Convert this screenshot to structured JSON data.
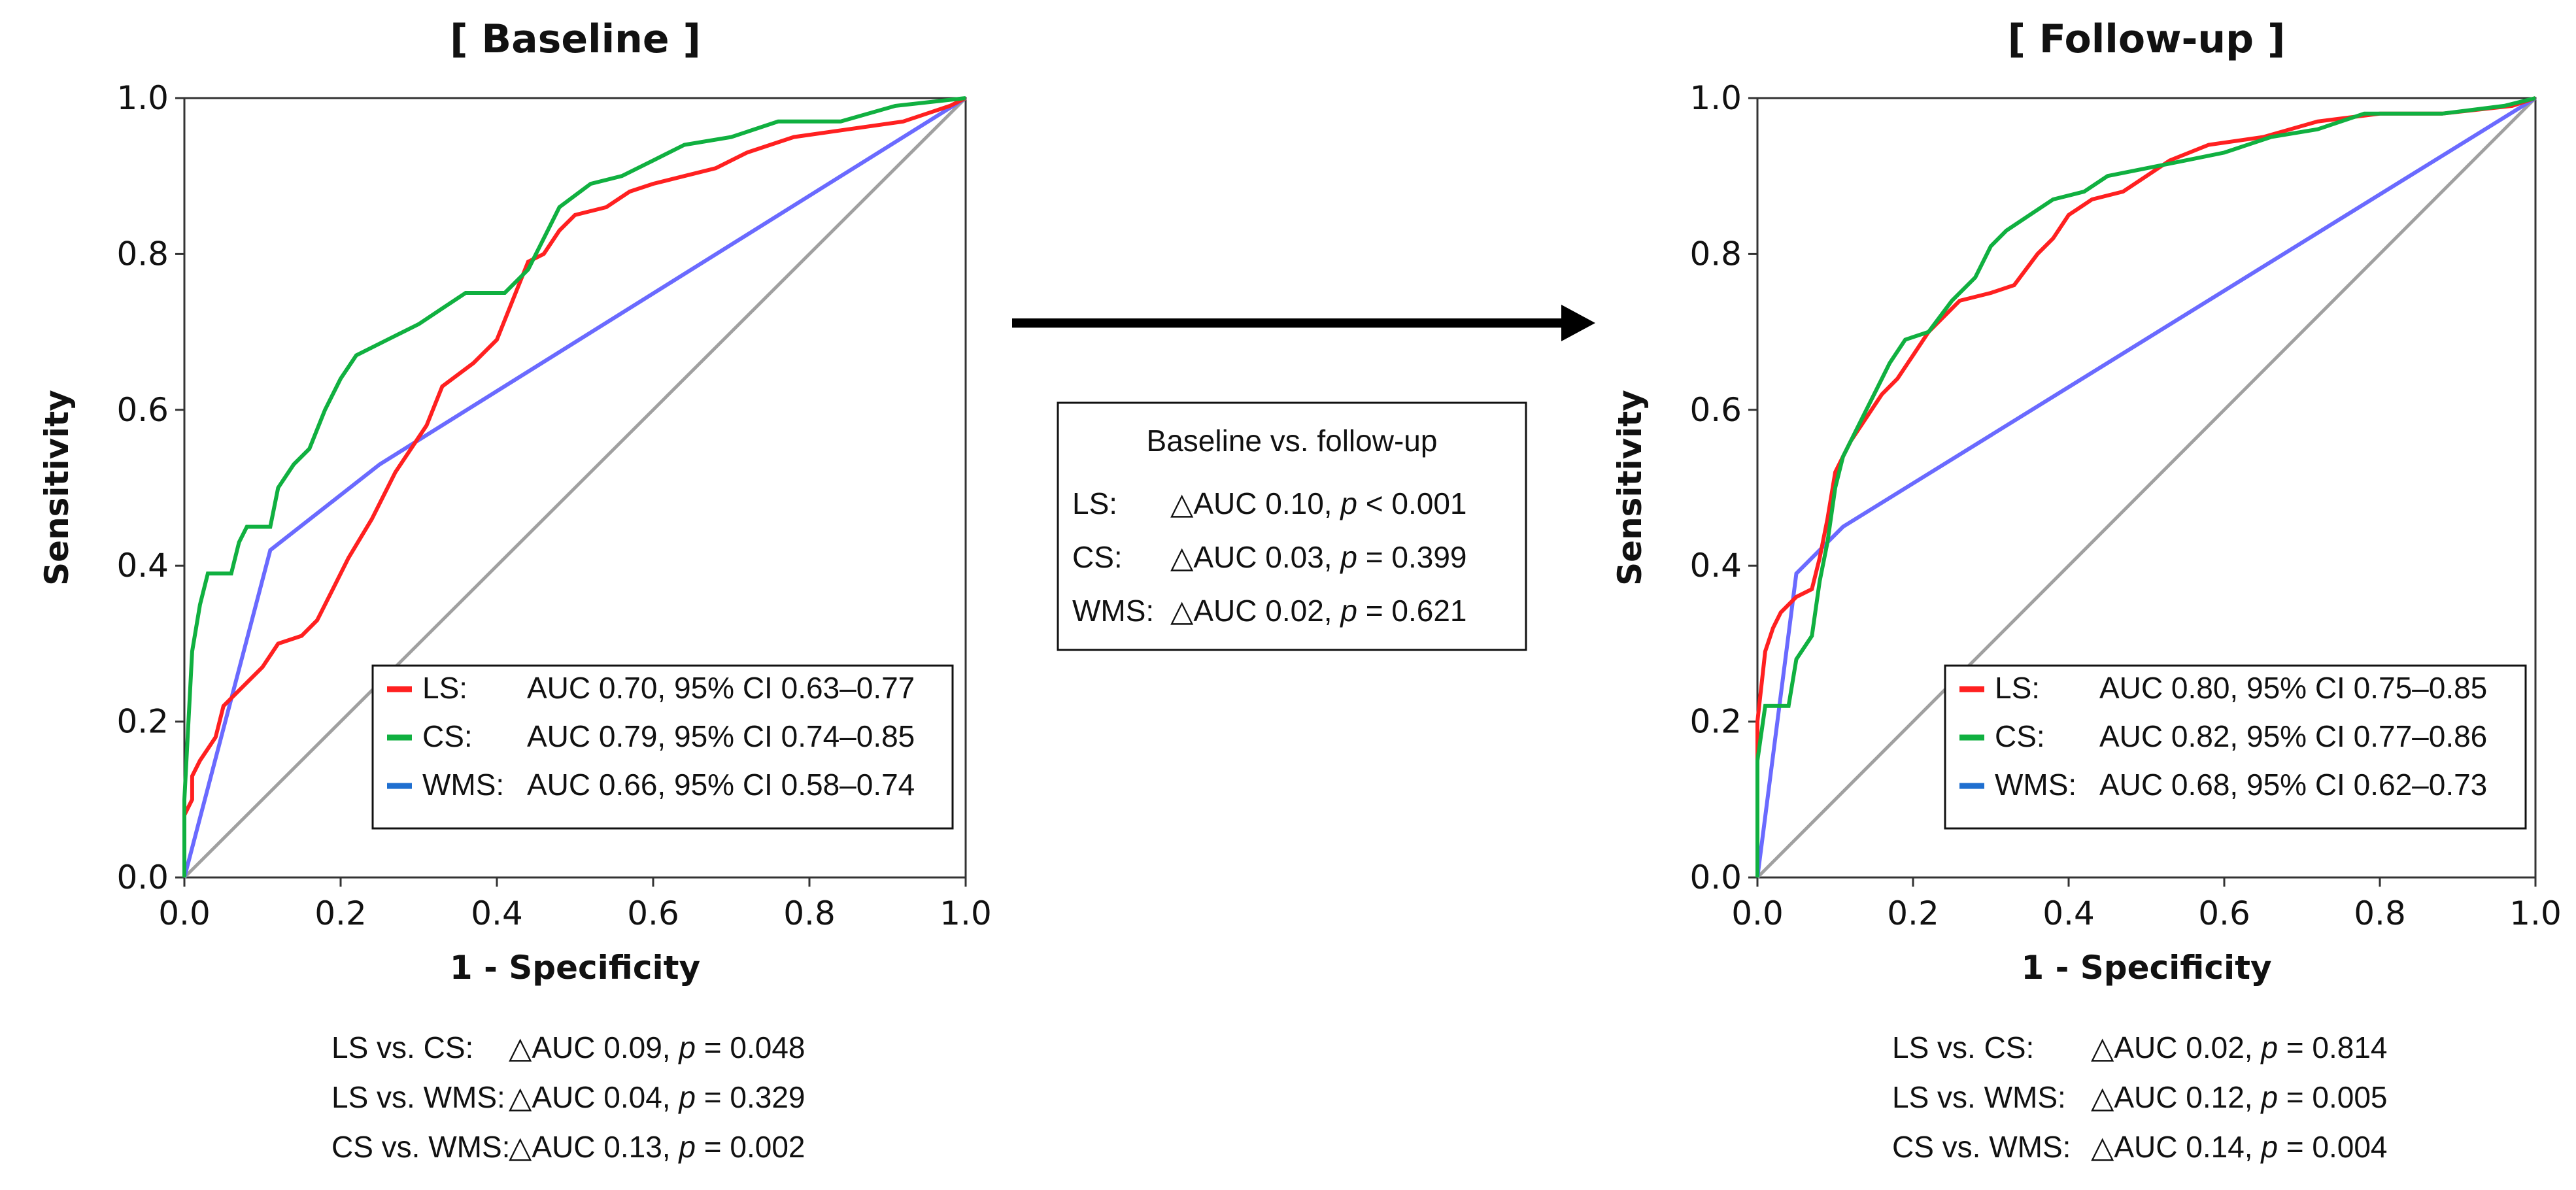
{
  "colors": {
    "LS": "#ff2020",
    "CS": "#10b040",
    "WMS": "#6a6aff",
    "WMS_legend": "#1f6fd0",
    "reference": "#a0a0a0",
    "axis": "#333333"
  },
  "chart_data": [
    {
      "type": "line",
      "title": "[ Baseline ]",
      "xlabel": "1 - Specificity",
      "ylabel": "Sensitivity",
      "xlim": [
        0,
        1
      ],
      "ylim": [
        0,
        1
      ],
      "xticks": [
        "0.0",
        "0.2",
        "0.4",
        "0.6",
        "0.8",
        "1.0"
      ],
      "yticks": [
        "0.0",
        "0.2",
        "0.4",
        "0.6",
        "0.8",
        "1.0"
      ],
      "series": [
        {
          "name": "LS",
          "color": "#ff2020",
          "points": [
            [
              0,
              0
            ],
            [
              0,
              0.08
            ],
            [
              0.01,
              0.1
            ],
            [
              0.01,
              0.13
            ],
            [
              0.02,
              0.15
            ],
            [
              0.04,
              0.18
            ],
            [
              0.05,
              0.22
            ],
            [
              0.08,
              0.25
            ],
            [
              0.1,
              0.27
            ],
            [
              0.12,
              0.3
            ],
            [
              0.15,
              0.31
            ],
            [
              0.17,
              0.33
            ],
            [
              0.19,
              0.37
            ],
            [
              0.21,
              0.41
            ],
            [
              0.24,
              0.46
            ],
            [
              0.27,
              0.52
            ],
            [
              0.31,
              0.58
            ],
            [
              0.33,
              0.63
            ],
            [
              0.37,
              0.66
            ],
            [
              0.4,
              0.69
            ],
            [
              0.42,
              0.74
            ],
            [
              0.44,
              0.79
            ],
            [
              0.46,
              0.8
            ],
            [
              0.48,
              0.83
            ],
            [
              0.5,
              0.85
            ],
            [
              0.54,
              0.86
            ],
            [
              0.57,
              0.88
            ],
            [
              0.6,
              0.89
            ],
            [
              0.64,
              0.9
            ],
            [
              0.68,
              0.91
            ],
            [
              0.72,
              0.93
            ],
            [
              0.78,
              0.95
            ],
            [
              0.85,
              0.96
            ],
            [
              0.92,
              0.97
            ],
            [
              0.98,
              0.99
            ],
            [
              1,
              1
            ]
          ]
        },
        {
          "name": "CS",
          "color": "#10b040",
          "points": [
            [
              0,
              0
            ],
            [
              0,
              0.1
            ],
            [
              0.01,
              0.29
            ],
            [
              0.02,
              0.35
            ],
            [
              0.03,
              0.39
            ],
            [
              0.06,
              0.39
            ],
            [
              0.07,
              0.43
            ],
            [
              0.08,
              0.45
            ],
            [
              0.11,
              0.45
            ],
            [
              0.12,
              0.5
            ],
            [
              0.14,
              0.53
            ],
            [
              0.16,
              0.55
            ],
            [
              0.18,
              0.6
            ],
            [
              0.2,
              0.64
            ],
            [
              0.22,
              0.67
            ],
            [
              0.26,
              0.69
            ],
            [
              0.3,
              0.71
            ],
            [
              0.33,
              0.73
            ],
            [
              0.36,
              0.75
            ],
            [
              0.41,
              0.75
            ],
            [
              0.44,
              0.78
            ],
            [
              0.46,
              0.82
            ],
            [
              0.48,
              0.86
            ],
            [
              0.52,
              0.89
            ],
            [
              0.56,
              0.9
            ],
            [
              0.6,
              0.92
            ],
            [
              0.64,
              0.94
            ],
            [
              0.7,
              0.95
            ],
            [
              0.76,
              0.97
            ],
            [
              0.84,
              0.97
            ],
            [
              0.91,
              0.99
            ],
            [
              1,
              1
            ]
          ]
        },
        {
          "name": "WMS",
          "color": "#6a6aff",
          "points": [
            [
              0,
              0
            ],
            [
              0.11,
              0.42
            ],
            [
              0.25,
              0.53
            ],
            [
              1,
              1
            ]
          ]
        },
        {
          "name": "reference",
          "color": "#a0a0a0",
          "points": [
            [
              0,
              0
            ],
            [
              1,
              1
            ]
          ]
        }
      ],
      "legend": [
        {
          "key": "LS:",
          "text": "AUC 0.70, 95% CI 0.63–0.77",
          "color": "#ff2020"
        },
        {
          "key": "CS:",
          "text": "AUC 0.79, 95% CI 0.74–0.85",
          "color": "#10b040"
        },
        {
          "key": "WMS:",
          "text": "AUC 0.66, 95% CI 0.58–0.74",
          "color": "#1f6fd0"
        }
      ],
      "comparisons": [
        {
          "label": "LS vs. CS:",
          "delta": "△AUC 0.09, ",
          "p": "p",
          "pval": " = 0.048"
        },
        {
          "label": "LS vs. WMS:",
          "delta": "△AUC 0.04, ",
          "p": "p",
          "pval": " = 0.329"
        },
        {
          "label": "CS vs. WMS:",
          "delta": "△AUC 0.13, ",
          "p": "p",
          "pval": " = 0.002"
        }
      ]
    },
    {
      "type": "line",
      "title": "[ Follow-up ]",
      "xlabel": "1 - Specificity",
      "ylabel": "Sensitivity",
      "xlim": [
        0,
        1
      ],
      "ylim": [
        0,
        1
      ],
      "xticks": [
        "0.0",
        "0.2",
        "0.4",
        "0.6",
        "0.8",
        "1.0"
      ],
      "yticks": [
        "0.0",
        "0.2",
        "0.4",
        "0.6",
        "0.8",
        "1.0"
      ],
      "series": [
        {
          "name": "LS",
          "color": "#ff2020",
          "points": [
            [
              0,
              0
            ],
            [
              0,
              0.2
            ],
            [
              0.01,
              0.29
            ],
            [
              0.02,
              0.32
            ],
            [
              0.03,
              0.34
            ],
            [
              0.05,
              0.36
            ],
            [
              0.07,
              0.37
            ],
            [
              0.08,
              0.41
            ],
            [
              0.09,
              0.46
            ],
            [
              0.1,
              0.52
            ],
            [
              0.12,
              0.56
            ],
            [
              0.14,
              0.59
            ],
            [
              0.16,
              0.62
            ],
            [
              0.18,
              0.64
            ],
            [
              0.2,
              0.67
            ],
            [
              0.22,
              0.7
            ],
            [
              0.24,
              0.72
            ],
            [
              0.26,
              0.74
            ],
            [
              0.3,
              0.75
            ],
            [
              0.33,
              0.76
            ],
            [
              0.36,
              0.8
            ],
            [
              0.38,
              0.82
            ],
            [
              0.4,
              0.85
            ],
            [
              0.43,
              0.87
            ],
            [
              0.47,
              0.88
            ],
            [
              0.5,
              0.9
            ],
            [
              0.53,
              0.92
            ],
            [
              0.58,
              0.94
            ],
            [
              0.65,
              0.95
            ],
            [
              0.72,
              0.97
            ],
            [
              0.8,
              0.98
            ],
            [
              0.88,
              0.98
            ],
            [
              0.97,
              0.99
            ],
            [
              1,
              1
            ]
          ]
        },
        {
          "name": "CS",
          "color": "#10b040",
          "points": [
            [
              0,
              0
            ],
            [
              0,
              0.15
            ],
            [
              0.01,
              0.22
            ],
            [
              0.04,
              0.22
            ],
            [
              0.05,
              0.28
            ],
            [
              0.07,
              0.31
            ],
            [
              0.08,
              0.38
            ],
            [
              0.09,
              0.43
            ],
            [
              0.1,
              0.5
            ],
            [
              0.11,
              0.54
            ],
            [
              0.13,
              0.58
            ],
            [
              0.15,
              0.62
            ],
            [
              0.17,
              0.66
            ],
            [
              0.19,
              0.69
            ],
            [
              0.22,
              0.7
            ],
            [
              0.25,
              0.74
            ],
            [
              0.28,
              0.77
            ],
            [
              0.3,
              0.81
            ],
            [
              0.32,
              0.83
            ],
            [
              0.35,
              0.85
            ],
            [
              0.38,
              0.87
            ],
            [
              0.42,
              0.88
            ],
            [
              0.45,
              0.9
            ],
            [
              0.5,
              0.91
            ],
            [
              0.55,
              0.92
            ],
            [
              0.6,
              0.93
            ],
            [
              0.66,
              0.95
            ],
            [
              0.72,
              0.96
            ],
            [
              0.78,
              0.98
            ],
            [
              0.88,
              0.98
            ],
            [
              0.96,
              0.99
            ],
            [
              1,
              1
            ]
          ]
        },
        {
          "name": "WMS",
          "color": "#6a6aff",
          "points": [
            [
              0,
              0
            ],
            [
              0.05,
              0.39
            ],
            [
              0.11,
              0.45
            ],
            [
              1,
              1
            ]
          ]
        },
        {
          "name": "reference",
          "color": "#a0a0a0",
          "points": [
            [
              0,
              0
            ],
            [
              1,
              1
            ]
          ]
        }
      ],
      "legend": [
        {
          "key": "LS:",
          "text": "AUC 0.80, 95% CI 0.75–0.85",
          "color": "#ff2020"
        },
        {
          "key": "CS:",
          "text": "AUC 0.82, 95% CI 0.77–0.86",
          "color": "#10b040"
        },
        {
          "key": "WMS:",
          "text": "AUC 0.68, 95% CI 0.62–0.73",
          "color": "#1f6fd0"
        }
      ],
      "comparisons": [
        {
          "label": "LS vs. CS:",
          "delta": "△AUC 0.02, ",
          "p": "p",
          "pval": " = 0.814"
        },
        {
          "label": "LS vs. WMS:",
          "delta": "△AUC 0.12, ",
          "p": "p",
          "pval": " = 0.005"
        },
        {
          "label": "CS vs. WMS:",
          "delta": "△AUC 0.14, ",
          "p": "p",
          "pval": " = 0.004"
        }
      ]
    }
  ],
  "middle_box": {
    "title": "Baseline vs. follow-up",
    "rows": [
      {
        "label": "LS:",
        "delta": "△AUC 0.10, ",
        "p": "p",
        "pval": " < 0.001"
      },
      {
        "label": "CS:",
        "delta": "△AUC 0.03, ",
        "p": "p",
        "pval": " = 0.399"
      },
      {
        "label": "WMS:",
        "delta": "△AUC 0.02, ",
        "p": "p",
        "pval": " = 0.621"
      }
    ]
  }
}
